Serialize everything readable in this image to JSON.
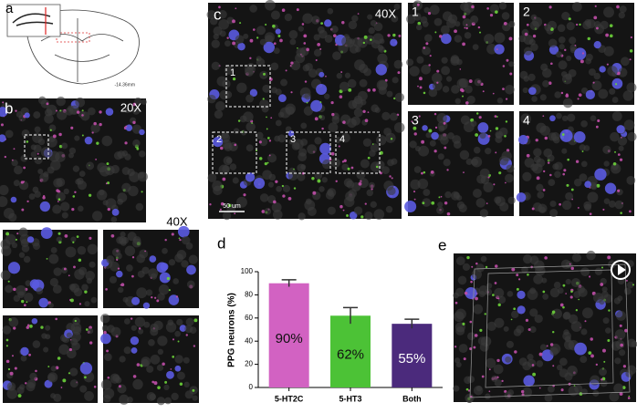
{
  "panel_labels": [
    "a",
    "b",
    "c",
    "d",
    "e"
  ],
  "atlas_label": "-14.36mm",
  "panel_b": {
    "magnification": "20X",
    "zoom_magnification": "40X"
  },
  "panel_c": {
    "magnification": "40X",
    "scale_bar": "50 um",
    "box_labels": [
      "1",
      "2",
      "3",
      "4"
    ],
    "inset_labels": [
      "1",
      "2",
      "3",
      "4"
    ]
  },
  "chart_data": {
    "type": "bar",
    "y_label": "PPG neurons (%)",
    "categories": [
      "5-HT2C",
      "5-HT3",
      "Both"
    ],
    "values": [
      90,
      62,
      55
    ],
    "value_labels": [
      "90%",
      "62%",
      "55%"
    ],
    "errors": [
      3,
      7,
      4
    ],
    "colors": [
      "#d262c2",
      "#4cc236",
      "#4b2a7c"
    ],
    "ylim": [
      0,
      100
    ],
    "yticks": [
      0,
      20,
      40,
      60,
      80,
      100
    ]
  }
}
